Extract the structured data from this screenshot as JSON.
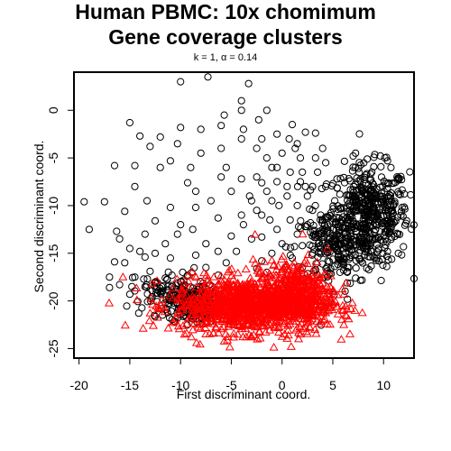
{
  "chart_data": {
    "type": "scatter",
    "title": "Human PBMC: 10x chomimum",
    "subtitle": "Gene coverage clusters",
    "annotation": "k = 1, α = 0.14",
    "xlabel": "First discriminant coord.",
    "ylabel": "Second discriminant coord.",
    "xlim": [
      -20.5,
      13
    ],
    "ylim": [
      -26,
      4
    ],
    "xticks": [
      -20,
      -15,
      -10,
      -5,
      0,
      5,
      10
    ],
    "yticks": [
      -25,
      -20,
      -15,
      -10,
      -5,
      0
    ],
    "xtick_labels": [
      "-20",
      "-15",
      "-10",
      "-5",
      "0",
      "5",
      "10"
    ],
    "ytick_labels": [
      "-25",
      "-20",
      "-15",
      "-10",
      "-5",
      "0"
    ],
    "grid": false,
    "legend": "none",
    "series": [
      {
        "marker": "circle",
        "color": "#000000",
        "points": [
          [
            -10.0,
            3.0
          ],
          [
            -7.3,
            3.5
          ],
          [
            -3.3,
            2.8
          ],
          [
            -4.0,
            1.0
          ],
          [
            -4.0,
            0.0
          ],
          [
            -1.5,
            0.0
          ],
          [
            -5.7,
            -0.5
          ],
          [
            -2.3,
            -1.0
          ],
          [
            -15.0,
            -1.3
          ],
          [
            -6.0,
            -1.6
          ],
          [
            -10.0,
            -1.8
          ],
          [
            -8.0,
            -2.0
          ],
          [
            -3.8,
            -2.0
          ],
          [
            2.3,
            -2.3
          ],
          [
            3.3,
            -2.4
          ],
          [
            -14.0,
            -2.7
          ],
          [
            -12.0,
            -2.8
          ],
          [
            -4.0,
            -3.0
          ],
          [
            -2.0,
            -3.0
          ],
          [
            0.7,
            -3.0
          ],
          [
            -10.3,
            -3.5
          ],
          [
            -13.0,
            -3.8
          ],
          [
            -6.0,
            -4.0
          ],
          [
            1.3,
            -4.0
          ],
          [
            4.0,
            -4.0
          ],
          [
            -8.0,
            -4.5
          ],
          [
            -11.0,
            -5.3
          ],
          [
            -1.5,
            -5.0
          ],
          [
            3.3,
            -5.0
          ],
          [
            7.0,
            -4.8
          ],
          [
            -14.5,
            -5.8
          ],
          [
            -16.5,
            -5.8
          ],
          [
            -12.0,
            -6.0
          ],
          [
            -9.0,
            -6.0
          ],
          [
            -5.5,
            -6.0
          ],
          [
            -0.5,
            -6.0
          ],
          [
            -6.0,
            -7.0
          ],
          [
            -4.0,
            -7.2
          ],
          [
            -2.0,
            -7.6
          ],
          [
            -9.3,
            -7.6
          ],
          [
            -14.5,
            -8.0
          ],
          [
            0.5,
            -8.0
          ],
          [
            2.3,
            -8.0
          ],
          [
            -8.5,
            -8.5
          ],
          [
            -5.0,
            -8.5
          ],
          [
            -1.0,
            -9.5
          ],
          [
            -3.0,
            -9.5
          ],
          [
            -7.0,
            -9.5
          ],
          [
            -19.5,
            -9.6
          ],
          [
            -17.5,
            -9.6
          ],
          [
            -13.3,
            -9.5
          ],
          [
            -11.0,
            -10.2
          ],
          [
            -8.5,
            -10.2
          ],
          [
            -15.5,
            -10.6
          ],
          [
            -4.0,
            -11.0
          ],
          [
            -2.0,
            -11.0
          ],
          [
            -6.3,
            -11.3
          ],
          [
            -10.0,
            -12.0
          ],
          [
            -12.5,
            -11.6
          ],
          [
            -8.8,
            -12.5
          ],
          [
            -19.0,
            -12.5
          ],
          [
            -16.3,
            -12.7
          ],
          [
            -13.5,
            -13.0
          ],
          [
            -5.0,
            -13.2
          ],
          [
            -3.0,
            -13.5
          ],
          [
            -10.3,
            -13.0
          ],
          [
            -16.0,
            -13.5
          ],
          [
            -7.5,
            -14.0
          ],
          [
            -11.5,
            -14.0
          ],
          [
            -15.0,
            -14.5
          ],
          [
            -14.0,
            -14.8
          ],
          [
            -12.5,
            -15.0
          ],
          [
            -6.3,
            -14.8
          ],
          [
            -4.5,
            -14.8
          ],
          [
            -8.5,
            -15.2
          ],
          [
            -13.5,
            -15.4
          ],
          [
            -11.0,
            -15.5
          ],
          [
            -16.5,
            -15.9
          ],
          [
            -15.5,
            -16.0
          ],
          [
            -5.5,
            -16.0
          ],
          [
            -7.5,
            -16.5
          ],
          [
            -2.5,
            -16.6
          ],
          [
            -9.3,
            -17.3
          ],
          [
            -6.3,
            -17.3
          ],
          [
            -14.5,
            -17.5
          ],
          [
            -11.5,
            -17.6
          ],
          [
            -10.0,
            -18.0
          ],
          [
            -16.0,
            -18.3
          ],
          [
            -17.0,
            -18.6
          ],
          [
            -13.5,
            -18.5
          ],
          [
            -12.0,
            -18.7
          ],
          [
            -15.0,
            -19.3
          ],
          [
            -11.0,
            -19.5
          ],
          [
            -17.0,
            -17.5
          ],
          [
            -13.0,
            -16.9
          ],
          [
            1.0,
            -1.5
          ],
          [
            -0.5,
            -2.5
          ],
          [
            1.5,
            -3.5
          ],
          [
            -2.5,
            -4.0
          ],
          [
            0.0,
            -4.5
          ],
          [
            1.8,
            -5.0
          ],
          [
            -1.0,
            -6.0
          ],
          [
            0.8,
            -6.5
          ],
          [
            2.0,
            -6.5
          ],
          [
            -2.5,
            -7.0
          ],
          [
            -0.5,
            -7.5
          ],
          [
            1.8,
            -7.5
          ],
          [
            -1.5,
            -8.5
          ],
          [
            0.5,
            -9.0
          ],
          [
            2.5,
            -9.0
          ],
          [
            -3.2,
            -9.0
          ],
          [
            -0.3,
            -10.0
          ],
          [
            1.5,
            -10.0
          ],
          [
            3.0,
            -10.5
          ],
          [
            -2.5,
            -10.5
          ],
          [
            -1.2,
            -11.5
          ],
          [
            0.8,
            -11.5
          ],
          [
            2.5,
            -12.0
          ],
          [
            -3.8,
            -12.0
          ],
          [
            -0.5,
            -12.5
          ],
          [
            1.5,
            -13.0
          ],
          [
            3.3,
            -13.0
          ],
          [
            -2.0,
            -13.3
          ],
          [
            0.0,
            -14.0
          ],
          [
            2.0,
            -14.2
          ],
          [
            -1.0,
            -15.0
          ],
          [
            1.0,
            -15.5
          ],
          [
            3.0,
            -15.0
          ],
          [
            -2.0,
            -15.8
          ],
          [
            0.3,
            -16.5
          ],
          [
            -1.5,
            -17.0
          ],
          [
            2.0,
            -16.5
          ],
          [
            3.5,
            -6.5
          ],
          [
            4.3,
            -8.0
          ],
          [
            3.8,
            -11.0
          ],
          [
            4.5,
            -14.0
          ],
          [
            3.0,
            -8.0
          ],
          [
            4.3,
            -5.5
          ],
          [
            2.8,
            -11.8
          ],
          [
            4.0,
            -12.5
          ]
        ],
        "clusters": [
          {
            "center": [
              8.5,
              -11.0
            ],
            "spread": [
              2.0,
              2.6
            ],
            "count": 500
          },
          {
            "center": [
              5.0,
              -14.5
            ],
            "spread": [
              2.0,
              2.0
            ],
            "count": 180
          },
          {
            "center": [
              -8.8,
              -20.3
            ],
            "spread": [
              1.2,
              1.0
            ],
            "count": 220
          },
          {
            "center": [
              -11.5,
              -19.0
            ],
            "spread": [
              1.7,
              1.2
            ],
            "count": 70
          }
        ]
      },
      {
        "marker": "triangle",
        "color": "#ff0000",
        "clusters": [
          {
            "center": [
              -3.5,
              -20.5
            ],
            "spread": [
              3.6,
              1.4
            ],
            "count": 1000
          },
          {
            "center": [
              1.3,
              -19.5
            ],
            "spread": [
              2.0,
              1.8
            ],
            "count": 400
          }
        ],
        "points": [
          [
            -1.0,
            -15.8
          ],
          [
            1.2,
            -16.0
          ],
          [
            -2.3,
            -16.5
          ],
          [
            0.0,
            -17.0
          ],
          [
            -7.5,
            -18.5
          ],
          [
            -6.0,
            -23.0
          ],
          [
            -3.0,
            -23.8
          ],
          [
            0.0,
            -23.8
          ],
          [
            -9.0,
            -20.6
          ],
          [
            -8.3,
            -19.3
          ],
          [
            3.5,
            -17.5
          ],
          [
            4.3,
            -19.6
          ],
          [
            2.5,
            -22.0
          ],
          [
            -4.8,
            -17.8
          ],
          [
            -1.8,
            -22.7
          ]
        ]
      }
    ]
  }
}
